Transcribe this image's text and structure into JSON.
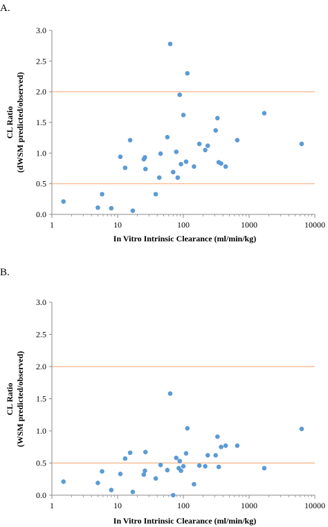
{
  "chart_data": [
    {
      "type": "scatter",
      "panel_label": "A.",
      "xlabel": "In Vitro Intrinsic Clearance (ml/min/kg)",
      "ylabel_line1": "CL Ratio",
      "ylabel_line2": "(dWSM predicted/observed)",
      "x_scale": "log",
      "xlim": [
        1,
        10000
      ],
      "ylim": [
        0,
        3.0
      ],
      "x_ticks": [
        "1",
        "10",
        "100",
        "1000",
        "10000"
      ],
      "y_ticks": [
        "0.0",
        "0.5",
        "1.0",
        "1.5",
        "2.0",
        "2.5",
        "3.0"
      ],
      "reference_lines": [
        0.5,
        2.0
      ],
      "marker_color": "#5b9bd5",
      "reference_line_color": "#f4b183",
      "grid": false,
      "points": [
        {
          "x": 1.5,
          "y": 0.21
        },
        {
          "x": 5,
          "y": 0.11
        },
        {
          "x": 5.8,
          "y": 0.33
        },
        {
          "x": 8,
          "y": 0.1
        },
        {
          "x": 11,
          "y": 0.94
        },
        {
          "x": 13,
          "y": 0.76
        },
        {
          "x": 15.5,
          "y": 1.21
        },
        {
          "x": 17,
          "y": 0.06
        },
        {
          "x": 25,
          "y": 0.9
        },
        {
          "x": 26,
          "y": 0.93
        },
        {
          "x": 26.5,
          "y": 0.74
        },
        {
          "x": 38,
          "y": 0.33
        },
        {
          "x": 43,
          "y": 0.6
        },
        {
          "x": 45,
          "y": 0.99
        },
        {
          "x": 57,
          "y": 1.26
        },
        {
          "x": 63,
          "y": 2.78
        },
        {
          "x": 70,
          "y": 0.69
        },
        {
          "x": 78,
          "y": 1.02
        },
        {
          "x": 82,
          "y": 0.6
        },
        {
          "x": 88,
          "y": 1.95
        },
        {
          "x": 92,
          "y": 0.82
        },
        {
          "x": 100,
          "y": 1.62
        },
        {
          "x": 110,
          "y": 0.86
        },
        {
          "x": 115,
          "y": 2.3
        },
        {
          "x": 145,
          "y": 0.78
        },
        {
          "x": 175,
          "y": 1.15
        },
        {
          "x": 215,
          "y": 1.05
        },
        {
          "x": 235,
          "y": 1.12
        },
        {
          "x": 310,
          "y": 1.37
        },
        {
          "x": 330,
          "y": 1.57
        },
        {
          "x": 345,
          "y": 0.85
        },
        {
          "x": 375,
          "y": 0.83
        },
        {
          "x": 440,
          "y": 0.78
        },
        {
          "x": 660,
          "y": 1.21
        },
        {
          "x": 1700,
          "y": 1.65
        },
        {
          "x": 6300,
          "y": 1.15
        }
      ]
    },
    {
      "type": "scatter",
      "panel_label": "B.",
      "xlabel": "In Vitro Intrinsic Clearance (ml/min/kg)",
      "ylabel_line1": "CL Ratio",
      "ylabel_line2": "(WSM predicted/observed)",
      "x_scale": "log",
      "xlim": [
        1,
        10000
      ],
      "ylim": [
        0,
        3.0
      ],
      "x_ticks": [
        "1",
        "10",
        "100",
        "1000",
        "10000"
      ],
      "y_ticks": [
        "0.0",
        "0.5",
        "1.0",
        "1.5",
        "2.0",
        "2.5",
        "3.0"
      ],
      "reference_lines": [
        0.5,
        2.0
      ],
      "marker_color": "#5b9bd5",
      "reference_line_color": "#f4b183",
      "grid": false,
      "points": [
        {
          "x": 1.5,
          "y": 0.21
        },
        {
          "x": 5,
          "y": 0.19
        },
        {
          "x": 5.8,
          "y": 0.37
        },
        {
          "x": 8,
          "y": 0.08
        },
        {
          "x": 11,
          "y": 0.33
        },
        {
          "x": 13,
          "y": 0.57
        },
        {
          "x": 15.5,
          "y": 0.66
        },
        {
          "x": 17,
          "y": 0.05
        },
        {
          "x": 25,
          "y": 0.32
        },
        {
          "x": 26,
          "y": 0.38
        },
        {
          "x": 26.5,
          "y": 0.67
        },
        {
          "x": 38,
          "y": 0.26
        },
        {
          "x": 45,
          "y": 0.47
        },
        {
          "x": 57,
          "y": 0.39
        },
        {
          "x": 63,
          "y": 1.58
        },
        {
          "x": 70,
          "y": 0.0
        },
        {
          "x": 78,
          "y": 0.58
        },
        {
          "x": 85,
          "y": 0.42
        },
        {
          "x": 88,
          "y": 0.53
        },
        {
          "x": 92,
          "y": 0.38
        },
        {
          "x": 100,
          "y": 0.45
        },
        {
          "x": 110,
          "y": 0.65
        },
        {
          "x": 115,
          "y": 1.04
        },
        {
          "x": 145,
          "y": 0.17
        },
        {
          "x": 175,
          "y": 0.46
        },
        {
          "x": 215,
          "y": 0.45
        },
        {
          "x": 235,
          "y": 0.62
        },
        {
          "x": 310,
          "y": 0.62
        },
        {
          "x": 330,
          "y": 0.91
        },
        {
          "x": 345,
          "y": 0.44
        },
        {
          "x": 375,
          "y": 0.75
        },
        {
          "x": 440,
          "y": 0.77
        },
        {
          "x": 660,
          "y": 0.77
        },
        {
          "x": 1700,
          "y": 0.42
        },
        {
          "x": 6300,
          "y": 1.03
        }
      ]
    }
  ]
}
